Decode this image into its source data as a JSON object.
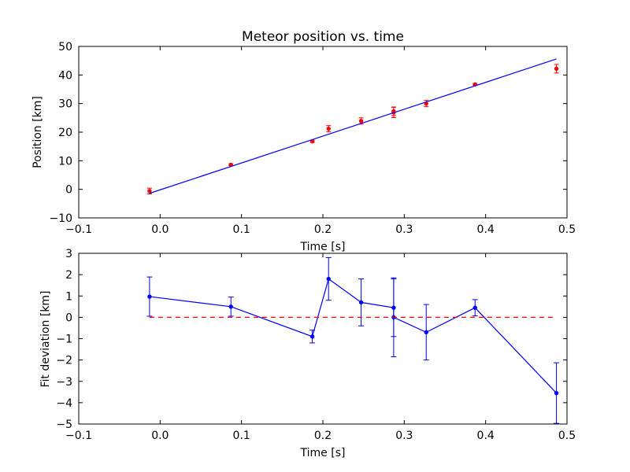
{
  "chart_data": [
    {
      "type": "scatter",
      "title": "Meteor position vs. time",
      "xlabel": "Time [s]",
      "ylabel": "Position [km]",
      "xlim": [
        -0.1,
        0.5
      ],
      "ylim": [
        -10,
        50
      ],
      "xticks": [
        -0.1,
        0.0,
        0.1,
        0.2,
        0.3,
        0.4,
        0.5
      ],
      "xticklabels": [
        "−0.1",
        "0.0",
        "0.1",
        "0.2",
        "0.3",
        "0.4",
        "0.5"
      ],
      "yticks": [
        -10,
        0,
        10,
        20,
        30,
        40,
        50
      ],
      "yticklabels": [
        "−10",
        "0",
        "10",
        "20",
        "30",
        "40",
        "50"
      ],
      "grid": false,
      "colors": {
        "points": "#ff0000",
        "fit": "#0000ff"
      },
      "series": [
        {
          "kind": "errorbar-points",
          "x": [
            -0.013,
            0.087,
            0.187,
            0.207,
            0.247,
            0.287,
            0.287,
            0.327,
            0.387,
            0.487
          ],
          "y": [
            -0.6,
            8.6,
            16.8,
            21.2,
            23.9,
            27.3,
            26.9,
            30.0,
            36.7,
            42.2
          ],
          "yerr": [
            1.0,
            0.3,
            0.4,
            1.1,
            1.1,
            1.5,
            1.8,
            1.1,
            0.3,
            1.5
          ]
        },
        {
          "kind": "fit-line",
          "x": [
            -0.013,
            0.487
          ],
          "y": [
            -1.4,
            45.6
          ]
        }
      ]
    },
    {
      "type": "line",
      "xlabel": "Time [s]",
      "ylabel": "Fit deviation [km]",
      "xlim": [
        -0.1,
        0.5
      ],
      "ylim": [
        -5,
        3
      ],
      "xticks": [
        -0.1,
        0.0,
        0.1,
        0.2,
        0.3,
        0.4,
        0.5
      ],
      "xticklabels": [
        "−0.1",
        "0.0",
        "0.1",
        "0.2",
        "0.3",
        "0.4",
        "0.5"
      ],
      "yticks": [
        -5,
        -4,
        -3,
        -2,
        -1,
        0,
        1,
        2,
        3
      ],
      "yticklabels": [
        "−5",
        "−4",
        "−3",
        "−2",
        "−1",
        "0",
        "1",
        "2",
        "3"
      ],
      "grid": false,
      "colors": {
        "series": "#0000ff",
        "zero_line": "#ff0000"
      },
      "series": [
        {
          "kind": "errorbar-line",
          "x": [
            -0.013,
            0.087,
            0.187,
            0.207,
            0.247,
            0.287,
            0.287,
            0.327,
            0.387,
            0.487
          ],
          "y": [
            0.97,
            0.5,
            -0.9,
            1.8,
            0.7,
            0.45,
            0.0,
            -0.7,
            0.45,
            -3.55
          ],
          "yerr": [
            0.92,
            0.45,
            0.3,
            1.0,
            1.1,
            1.35,
            1.85,
            1.3,
            0.38,
            1.42
          ]
        },
        {
          "kind": "zero-line",
          "style": "dashed",
          "x": [
            -0.013,
            0.487
          ],
          "y": [
            0,
            0
          ]
        }
      ]
    }
  ]
}
